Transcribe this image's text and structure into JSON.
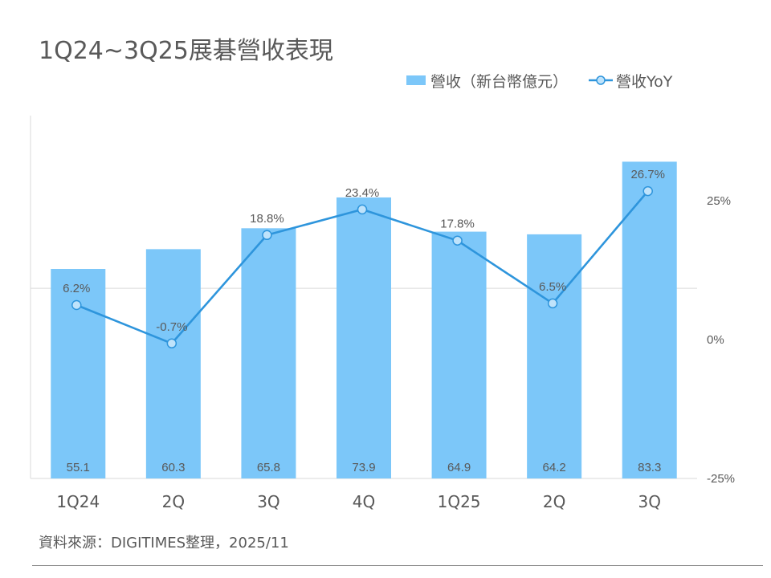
{
  "chart_data": {
    "type": "bar+line",
    "title": "1Q24~3Q25展碁營收表現",
    "categories": [
      "1Q24",
      "2Q",
      "3Q",
      "4Q",
      "1Q25",
      "2Q",
      "3Q"
    ],
    "series": [
      {
        "name": "營收（新台幣億元）",
        "type": "bar",
        "axis": "left",
        "values": [
          55.1,
          60.3,
          65.8,
          73.9,
          64.9,
          64.2,
          83.3
        ],
        "value_labels": [
          "55.1",
          "60.3",
          "65.8",
          "73.9",
          "64.9",
          "64.2",
          "83.3"
        ]
      },
      {
        "name": "營收YoY",
        "type": "line",
        "axis": "right",
        "values": [
          6.2,
          -0.7,
          18.8,
          23.4,
          17.8,
          6.5,
          26.7
        ],
        "value_labels": [
          "6.2%",
          "-0.7%",
          "18.8%",
          "23.4%",
          "17.8%",
          "6.5%",
          "26.7%"
        ]
      }
    ],
    "left_axis": {
      "ylim": [
        0,
        95
      ],
      "gridline_at": 50,
      "tick_labels_shown": false
    },
    "right_axis": {
      "ylim": [
        -25,
        40
      ],
      "ticks": [
        25,
        0,
        -25
      ],
      "tick_labels": [
        "25%",
        "0%",
        "-25%"
      ]
    },
    "legend_position": "top-right",
    "colors": {
      "bar": "#7cc7f9",
      "line": "#2e95dc",
      "marker_fill": "#bfe3fb",
      "grid": "#d9d9d9",
      "text": "#595959"
    }
  },
  "legend": {
    "bar_label": "營收（新台幣億元）",
    "line_label": "營收YoY"
  },
  "source": "資料來源：DIGITIMES整理，2025/11"
}
